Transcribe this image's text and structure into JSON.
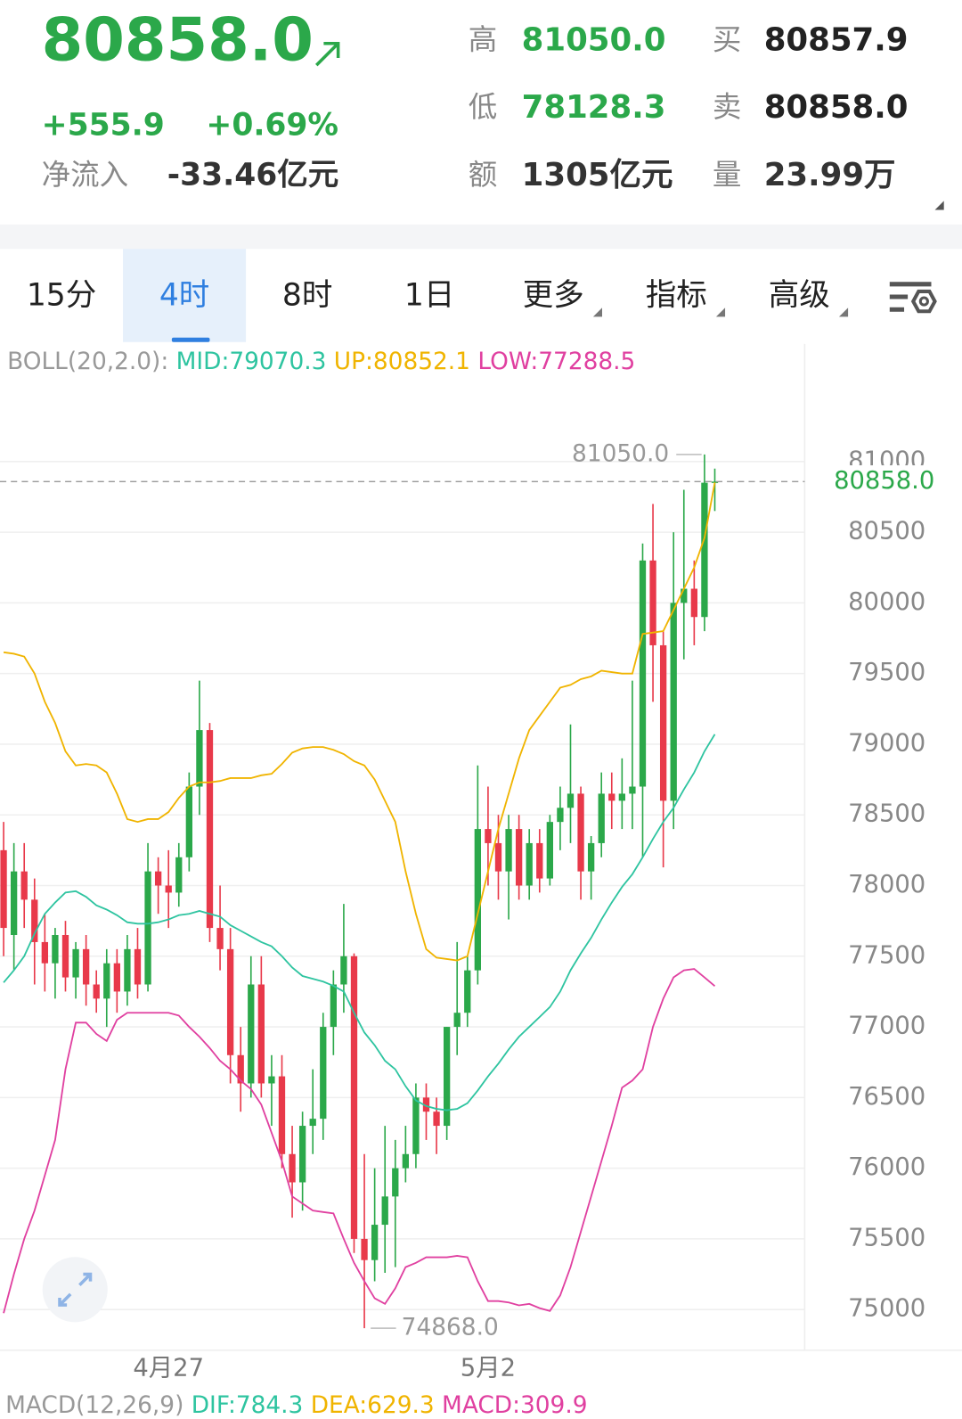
{
  "header": {
    "price": "80858.0",
    "change": "+555.9",
    "change_pct": "+0.69%",
    "net_inflow_label": "净流入",
    "net_inflow": "-33.46亿元",
    "stats": [
      {
        "label": "高",
        "value": "81050.0"
      },
      {
        "label": "买",
        "value": "80857.9"
      },
      {
        "label": "低",
        "value": "78128.3"
      },
      {
        "label": "卖",
        "value": "80858.0"
      },
      {
        "label": "额",
        "value": "1305亿元"
      },
      {
        "label": "量",
        "value": "23.99万"
      }
    ]
  },
  "tabs": [
    "15分",
    "4时",
    "8时",
    "1日",
    "更多",
    "指标",
    "高级"
  ],
  "chart_data": {
    "type": "candlestick",
    "indicator_label": "BOLL(20,2.0):",
    "indicator_values": [
      "MID:79070.3",
      "UP:80852.1",
      "LOW:77288.5"
    ],
    "macd_label": "MACD(12,26,9)",
    "macd_values": [
      "DIF:784.3",
      "DEA:629.3",
      "MACD:309.9"
    ],
    "up_color": "#2ba84a",
    "down_color": "#e8394a",
    "ylim": [
      74700,
      81600
    ],
    "yticks": [
      75000,
      75500,
      76000,
      76500,
      77000,
      77500,
      78000,
      78500,
      79000,
      79500,
      80000,
      80500,
      81000
    ],
    "grid": true,
    "last_price": {
      "value": 80858,
      "label": "80858.0"
    },
    "max_marker": {
      "value": 81050,
      "label": "81050.0"
    },
    "min_marker": {
      "value": 74868,
      "label": "74868.0"
    },
    "categories": [
      null,
      null,
      null,
      null,
      null,
      null,
      null,
      null,
      null,
      null,
      null,
      null,
      null,
      null,
      null,
      null,
      "4月27",
      null,
      null,
      null,
      null,
      null,
      null,
      null,
      null,
      null,
      null,
      null,
      null,
      null,
      null,
      null,
      null,
      null,
      null,
      null,
      null,
      null,
      null,
      null,
      null,
      null,
      null,
      null,
      null,
      null,
      null,
      "5月2",
      null,
      null,
      null,
      null,
      null,
      null,
      null,
      null,
      null,
      null,
      null,
      null,
      null,
      null,
      null,
      null,
      null,
      null,
      null,
      null,
      null,
      null
    ],
    "candles": [
      [
        78250,
        78450,
        77500,
        77700
      ],
      [
        77650,
        78300,
        77400,
        78100
      ],
      [
        78100,
        78300,
        77700,
        77900
      ],
      [
        77900,
        78050,
        77300,
        77600
      ],
      [
        77600,
        77800,
        77250,
        77450
      ],
      [
        77450,
        77700,
        77200,
        77650
      ],
      [
        77650,
        77750,
        77250,
        77350
      ],
      [
        77350,
        77600,
        77200,
        77550
      ],
      [
        77550,
        77650,
        77150,
        77300
      ],
      [
        77300,
        77400,
        77100,
        77200
      ],
      [
        77200,
        77550,
        77000,
        77450
      ],
      [
        77450,
        77550,
        77100,
        77250
      ],
      [
        77250,
        77650,
        77150,
        77550
      ],
      [
        77550,
        77700,
        77200,
        77300
      ],
      [
        77300,
        78300,
        77250,
        78100
      ],
      [
        78100,
        78200,
        77800,
        78000
      ],
      [
        78000,
        78250,
        77700,
        77950
      ],
      [
        77950,
        78300,
        77850,
        78200
      ],
      [
        78200,
        78800,
        78100,
        78700
      ],
      [
        78700,
        79450,
        78500,
        79100
      ],
      [
        79100,
        79150,
        77600,
        77700
      ],
      [
        77700,
        78000,
        77400,
        77550
      ],
      [
        77550,
        77700,
        76600,
        76800
      ],
      [
        76800,
        77000,
        76400,
        76600
      ],
      [
        76600,
        77500,
        76500,
        77300
      ],
      [
        77300,
        77500,
        76500,
        76600
      ],
      [
        76600,
        76800,
        76300,
        76650
      ],
      [
        76650,
        76800,
        76000,
        76100
      ],
      [
        76100,
        76300,
        75650,
        75900
      ],
      [
        75900,
        76400,
        75700,
        76300
      ],
      [
        76300,
        76700,
        76100,
        76350
      ],
      [
        76350,
        77100,
        76200,
        77000
      ],
      [
        77000,
        77400,
        76800,
        77300
      ],
      [
        77300,
        77870,
        77100,
        77500
      ],
      [
        77500,
        77520,
        75400,
        75500
      ],
      [
        75500,
        76100,
        74868,
        75350
      ],
      [
        75350,
        76000,
        75200,
        75600
      ],
      [
        75600,
        76300,
        75260,
        75800
      ],
      [
        75800,
        76200,
        75300,
        76000
      ],
      [
        76000,
        76300,
        75900,
        76100
      ],
      [
        76100,
        76600,
        76000,
        76500
      ],
      [
        76500,
        76600,
        76200,
        76400
      ],
      [
        76400,
        76500,
        76100,
        76300
      ],
      [
        76300,
        77000,
        76200,
        77000
      ],
      [
        77000,
        77600,
        76800,
        77100
      ],
      [
        77100,
        77500,
        77000,
        77400
      ],
      [
        77400,
        78850,
        77300,
        78400
      ],
      [
        78400,
        78700,
        78000,
        78300
      ],
      [
        78300,
        78500,
        77900,
        78100
      ],
      [
        78100,
        78500,
        77760,
        78400
      ],
      [
        78400,
        78500,
        77900,
        78000
      ],
      [
        78000,
        78400,
        77900,
        78300
      ],
      [
        78300,
        78400,
        77950,
        78050
      ],
      [
        78050,
        78500,
        78000,
        78450
      ],
      [
        78450,
        78700,
        78250,
        78550
      ],
      [
        78550,
        79140,
        78300,
        78650
      ],
      [
        78650,
        78700,
        77900,
        78100
      ],
      [
        78100,
        78350,
        77900,
        78300
      ],
      [
        78300,
        78800,
        78200,
        78650
      ],
      [
        78650,
        78800,
        78400,
        78600
      ],
      [
        78600,
        78900,
        78400,
        78650
      ],
      [
        78650,
        79450,
        78400,
        78700
      ],
      [
        78700,
        80420,
        78200,
        80300
      ],
      [
        80300,
        80700,
        79300,
        79700
      ],
      [
        79700,
        79800,
        78128.3,
        78600
      ],
      [
        78600,
        80500,
        78400,
        80000
      ],
      [
        80000,
        80800,
        79600,
        80100
      ],
      [
        80100,
        80300,
        79700,
        79900
      ],
      [
        79900,
        81050,
        79800,
        80850
      ],
      [
        80850,
        80950,
        80650,
        80858
      ]
    ],
    "series": [
      {
        "name": "MID",
        "color": "#2ec4a0",
        "values": [
          77314,
          77400,
          77500,
          77660,
          77800,
          77880,
          77950,
          77960,
          77920,
          77860,
          77830,
          77790,
          77740,
          77730,
          77730,
          77740,
          77760,
          77790,
          77800,
          77820,
          77800,
          77780,
          77720,
          77680,
          77640,
          77600,
          77570,
          77500,
          77420,
          77360,
          77340,
          77320,
          77290,
          77250,
          77100,
          76960,
          76870,
          76760,
          76700,
          76580,
          76480,
          76440,
          76420,
          76410,
          76420,
          76460,
          76550,
          76650,
          76740,
          76840,
          76930,
          77000,
          77070,
          77140,
          77250,
          77400,
          77520,
          77630,
          77760,
          77880,
          77990,
          78080,
          78200,
          78330,
          78450,
          78550,
          78680,
          78800,
          78950,
          79070.3
        ]
      },
      {
        "name": "UP",
        "color": "#f0b400",
        "values": [
          79650,
          79640,
          79620,
          79500,
          79300,
          79150,
          78950,
          78850,
          78860,
          78850,
          78800,
          78650,
          78470,
          78450,
          78470,
          78470,
          78520,
          78620,
          78700,
          78730,
          78730,
          78740,
          78760,
          78760,
          78760,
          78780,
          78790,
          78860,
          78940,
          78970,
          78980,
          78980,
          78960,
          78930,
          78880,
          78850,
          78750,
          78600,
          78450,
          78100,
          77800,
          77550,
          77490,
          77480,
          77470,
          77500,
          77800,
          78100,
          78400,
          78650,
          78900,
          79100,
          79200,
          79300,
          79400,
          79420,
          79460,
          79480,
          79520,
          79510,
          79500,
          79500,
          79780,
          79790,
          79800,
          79950,
          80100,
          80250,
          80460,
          80852.1
        ]
      },
      {
        "name": "LOW",
        "color": "#e040a0",
        "values": [
          74975,
          75250,
          75500,
          75700,
          75950,
          76200,
          76700,
          77030,
          77030,
          76950,
          76900,
          77050,
          77100,
          77100,
          77100,
          77100,
          77100,
          77080,
          77000,
          76930,
          76850,
          76760,
          76700,
          76620,
          76560,
          76450,
          76250,
          76050,
          75800,
          75750,
          75700,
          75690,
          75680,
          75500,
          75330,
          75200,
          75080,
          75040,
          75150,
          75300,
          75330,
          75370,
          75370,
          75370,
          75380,
          75370,
          75200,
          75060,
          75060,
          75050,
          75030,
          75040,
          75010,
          74990,
          75100,
          75300,
          75550,
          75800,
          76050,
          76300,
          76570,
          76620,
          76700,
          77000,
          77200,
          77350,
          77400,
          77410,
          77350,
          77288.5
        ]
      }
    ]
  }
}
